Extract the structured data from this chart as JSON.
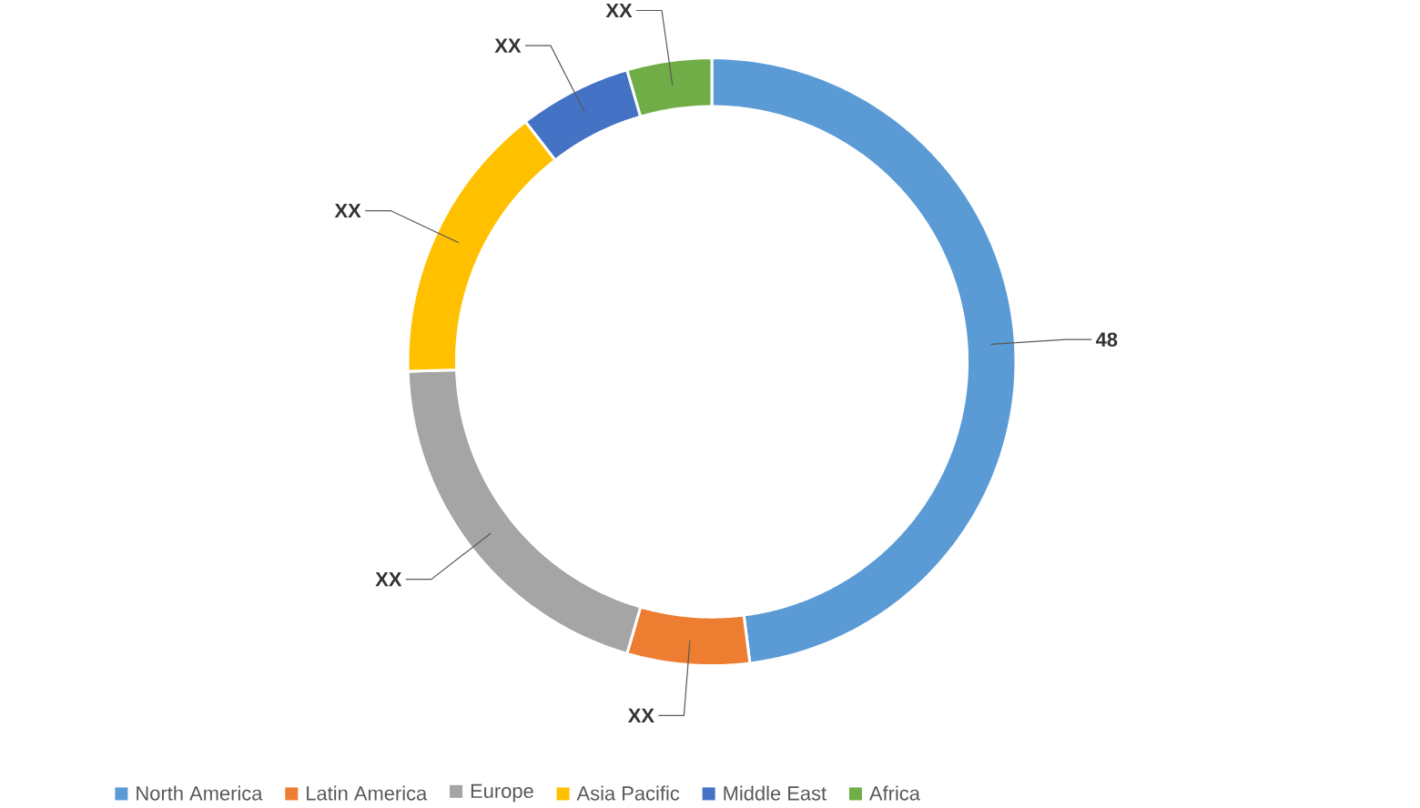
{
  "chart_data": {
    "type": "donut",
    "categories": [
      "North America",
      "Latin America",
      "Europe",
      "Asia Pacific",
      "Middle East",
      "Africa"
    ],
    "values": [
      48,
      6.5,
      20,
      15,
      6,
      4.5
    ],
    "colors": [
      "#5b9bd5",
      "#ed7d31",
      "#a5a5a5",
      "#ffc000",
      "#4472c4",
      "#70ad47"
    ],
    "value_labels": [
      "48",
      "XX",
      "XX",
      "XX",
      "XX",
      "XX"
    ],
    "legend": "bottom"
  }
}
